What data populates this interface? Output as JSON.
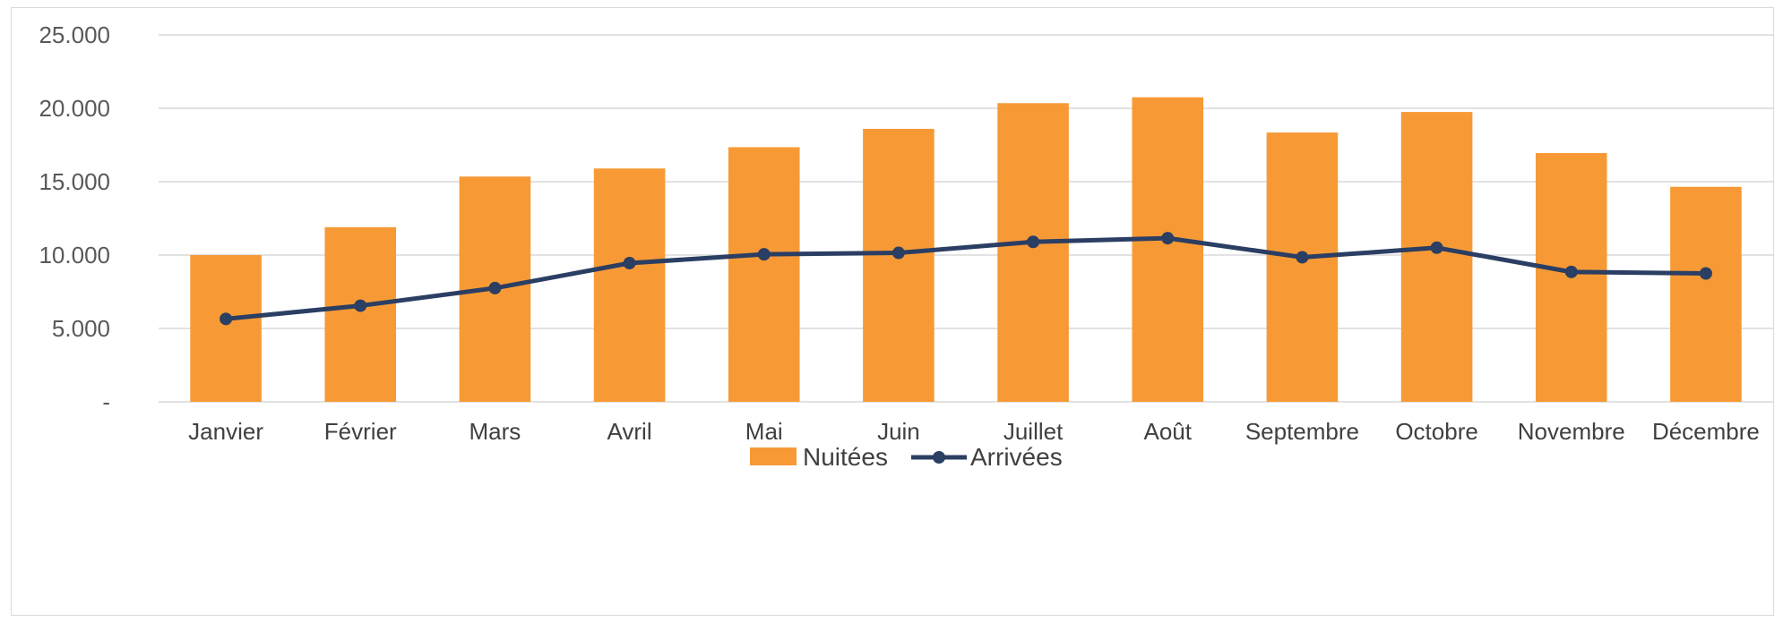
{
  "chart_data": {
    "type": "bar",
    "categories": [
      "Janvier",
      "Février",
      "Mars",
      "Avril",
      "Mai",
      "Juin",
      "Juillet",
      "Août",
      "Septembre",
      "Octobre",
      "Novembre",
      "Décembre"
    ],
    "series": [
      {
        "name": "Nuitées",
        "type": "bar",
        "color": "#F79A36",
        "values": [
          10000,
          11900,
          15350,
          15900,
          17350,
          18600,
          20350,
          20750,
          18350,
          19750,
          16950,
          14650
        ]
      },
      {
        "name": "Arrivées",
        "type": "line",
        "color": "#2B3E63",
        "values": [
          5650,
          6550,
          7750,
          9450,
          10050,
          10150,
          10900,
          11150,
          9850,
          10500,
          8850,
          8750
        ]
      }
    ],
    "title": "",
    "xlabel": "",
    "ylabel": "",
    "ylim": [
      0,
      25000
    ],
    "yticks": [
      0,
      5000,
      10000,
      15000,
      20000,
      25000
    ],
    "ytick_labels": [
      "-",
      "5.000",
      "10.000",
      "15.000",
      "20.000",
      "25.000"
    ],
    "grid": true,
    "legend_position": "bottom"
  }
}
